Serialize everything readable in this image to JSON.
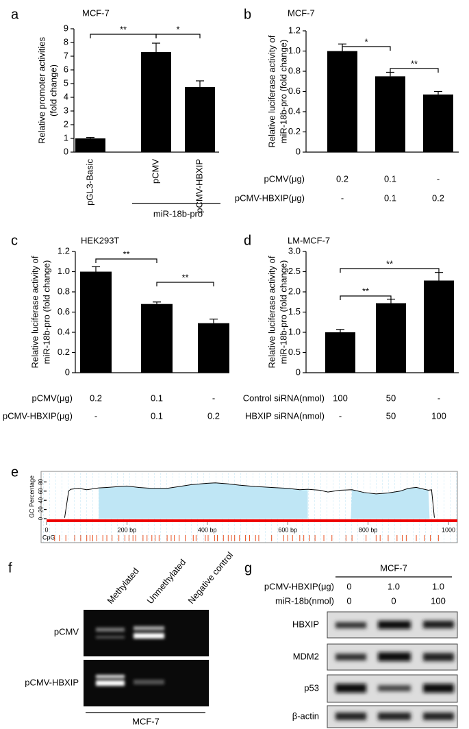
{
  "chart_data": [
    {
      "type": "bar",
      "panel_label": "a",
      "title": "MCF-7",
      "ylabel": [
        "Relative promoter activities",
        "(fold change)"
      ],
      "categories": [
        "pGL3-Basic",
        "pCMV",
        "pCMV-HBXIP"
      ],
      "group_label": "miR-18b-pro",
      "values": [
        1.0,
        7.3,
        4.75
      ],
      "errors": [
        0.07,
        0.65,
        0.45
      ],
      "color": "#000000",
      "ylim": [
        0,
        9
      ],
      "yticks": [
        0,
        1,
        2,
        3,
        4,
        5,
        6,
        7,
        8,
        9
      ],
      "annotations": [
        "**",
        "*"
      ]
    },
    {
      "type": "bar",
      "panel_label": "b",
      "title": "MCF-7",
      "ylabel": [
        "Relative luciferase activity of",
        "miR-18b-pro (fold change)"
      ],
      "values": [
        1.0,
        0.75,
        0.57
      ],
      "errors": [
        0.07,
        0.04,
        0.03
      ],
      "color": "#000000",
      "ylim": [
        0,
        1.2
      ],
      "yticks": [
        0,
        0.2,
        0.4,
        0.6,
        0.8,
        {
          "value": 1,
          "label": "1.0"
        },
        1.2
      ],
      "annotations": [
        "*",
        "**"
      ],
      "conditions": [
        {
          "label": "pCMV(μg)",
          "cells": [
            "0.2",
            "0.1",
            "-"
          ]
        },
        {
          "label": "pCMV-HBXIP(μg)",
          "cells": [
            "-",
            "0.1",
            "0.2"
          ]
        }
      ]
    },
    {
      "type": "bar",
      "panel_label": "c",
      "title": "HEK293T",
      "ylabel": [
        "Relative luciferase activity of",
        "miR-18b-pro (fold change)"
      ],
      "values": [
        1.0,
        0.68,
        0.49
      ],
      "errors": [
        0.05,
        0.02,
        0.04
      ],
      "color": "#000000",
      "ylim": [
        0,
        1.2
      ],
      "yticks": [
        0,
        0.2,
        0.4,
        0.6,
        0.8,
        {
          "value": 1,
          "label": "1.0"
        },
        1.2
      ],
      "annotations": [
        "**",
        "**"
      ],
      "conditions": [
        {
          "label": "pCMV(μg)",
          "cells": [
            "0.2",
            "0.1",
            "-"
          ]
        },
        {
          "label": "pCMV-HBXIP(μg)",
          "cells": [
            "-",
            "0.1",
            "0.2"
          ]
        }
      ]
    },
    {
      "type": "bar",
      "panel_label": "d",
      "title": "LM-MCF-7",
      "ylabel": [
        "Relative luciferase activity of",
        "miR-18b-pro (fold change)"
      ],
      "values": [
        1.0,
        1.72,
        2.28
      ],
      "errors": [
        0.07,
        0.1,
        0.2
      ],
      "color": "#000000",
      "ylim": [
        0,
        3
      ],
      "yticks": [
        0,
        0.5,
        {
          "value": 1,
          "label": "1.0"
        },
        1.5,
        {
          "value": 2,
          "label": "2.0"
        },
        2.5,
        {
          "value": 3,
          "label": "3.0"
        }
      ],
      "annotations": [
        "**",
        "**"
      ],
      "conditions": [
        {
          "label": "Control siRNA(nmol)",
          "cells": [
            "100",
            "50",
            "-"
          ]
        },
        {
          "label": "HBXIP siRNA(nmol)",
          "cells": [
            "-",
            "50",
            "100"
          ]
        }
      ]
    },
    {
      "type": "line",
      "panel_label": "e",
      "ylabel": "GC Percentage",
      "track_label": "CpG",
      "x": [
        45,
        55,
        60,
        80,
        100,
        130,
        150,
        180,
        200,
        230,
        260,
        300,
        330,
        360,
        400,
        420,
        450,
        480,
        520,
        560,
        600,
        630,
        650,
        680,
        700,
        730,
        760,
        790,
        820,
        850,
        880,
        900,
        920,
        950,
        958,
        965
      ],
      "values": [
        2,
        60,
        64,
        66,
        63,
        67,
        68,
        70,
        71,
        68,
        66,
        66,
        70,
        74,
        77,
        78,
        76,
        73,
        70,
        68,
        66,
        63,
        64,
        62,
        58,
        62,
        63,
        57,
        54,
        56,
        60,
        66,
        68,
        62,
        63,
        2
      ],
      "color": "#000000",
      "island_color": "#bfe6f5",
      "shaded_regions": [
        [
          130,
          650
        ],
        [
          757,
          953
        ]
      ],
      "cpg_sites": [
        20,
        32,
        48,
        70,
        85,
        100,
        108,
        115,
        125,
        140,
        150,
        163,
        180,
        195,
        205,
        215,
        222,
        240,
        250,
        262,
        270,
        280,
        300,
        310,
        318,
        330,
        345,
        365,
        372,
        395,
        402,
        418,
        425,
        440,
        452,
        460,
        468,
        480,
        495,
        505,
        520,
        528,
        560,
        590,
        600,
        612,
        630,
        640,
        655,
        668,
        690,
        710,
        745,
        760,
        795,
        820,
        830,
        850,
        872,
        885,
        895,
        920,
        940,
        955,
        975
      ],
      "xlim": [
        0,
        1000
      ],
      "ylim": [
        0,
        100
      ],
      "xticks": [
        0,
        {
          "value": 200,
          "label": "200 bp"
        },
        {
          "value": 400,
          "label": "400 bp"
        },
        {
          "value": 600,
          "label": "600 bp"
        },
        {
          "value": 800,
          "label": "800 bp"
        },
        1000
      ],
      "yticks": [
        0,
        20,
        40,
        60,
        80
      ]
    }
  ],
  "panels": {
    "f": {
      "label": "f",
      "lanes": [
        "Methylated",
        "Unmethylated",
        "Negative control"
      ],
      "rows": [
        "pCMV",
        "pCMV-HBXIP"
      ],
      "caption": "MCF-7"
    },
    "g": {
      "label": "g",
      "title": "MCF-7",
      "conditions": [
        {
          "label": "pCMV-HBXIP(μg)",
          "cells": [
            "0",
            "1.0",
            "1.0"
          ]
        },
        {
          "label": "miR-18b(nmol)",
          "cells": [
            "0",
            "0",
            "100"
          ]
        }
      ],
      "blots": [
        "HBXIP",
        "MDM2",
        "p53",
        "β-actin"
      ]
    }
  }
}
